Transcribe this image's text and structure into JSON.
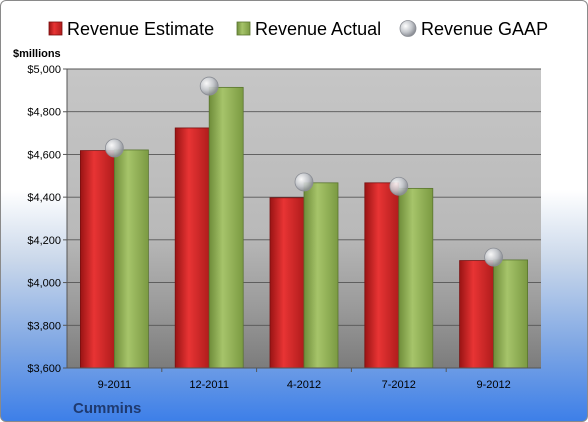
{
  "chart_data": {
    "type": "bar",
    "categories": [
      "9-2011",
      "12-2011",
      "4-2012",
      "7-2012",
      "9-2012"
    ],
    "series": [
      {
        "name": "Revenue Estimate",
        "kind": "bar",
        "color": "#d42a2a",
        "values": [
          4618,
          4724,
          4397,
          4467,
          4103
        ]
      },
      {
        "name": "Revenue Actual",
        "kind": "bar",
        "color": "#93b356",
        "values": [
          4621,
          4914,
          4467,
          4441,
          4106
        ]
      },
      {
        "name": "Revenue GAAP",
        "kind": "marker",
        "color": "#b8bcc4",
        "values": [
          4630,
          4920,
          4471,
          4451,
          4119
        ]
      }
    ],
    "ylabel": "$millions",
    "yticks": [
      "$3,600",
      "$3,800",
      "$4,000",
      "$4,200",
      "$4,400",
      "$4,600",
      "$4,800",
      "$5,000"
    ],
    "ylim": [
      3600,
      5000
    ],
    "ystep": 200,
    "grid": true,
    "legend": "top"
  },
  "footer": {
    "company": "Cummins"
  }
}
